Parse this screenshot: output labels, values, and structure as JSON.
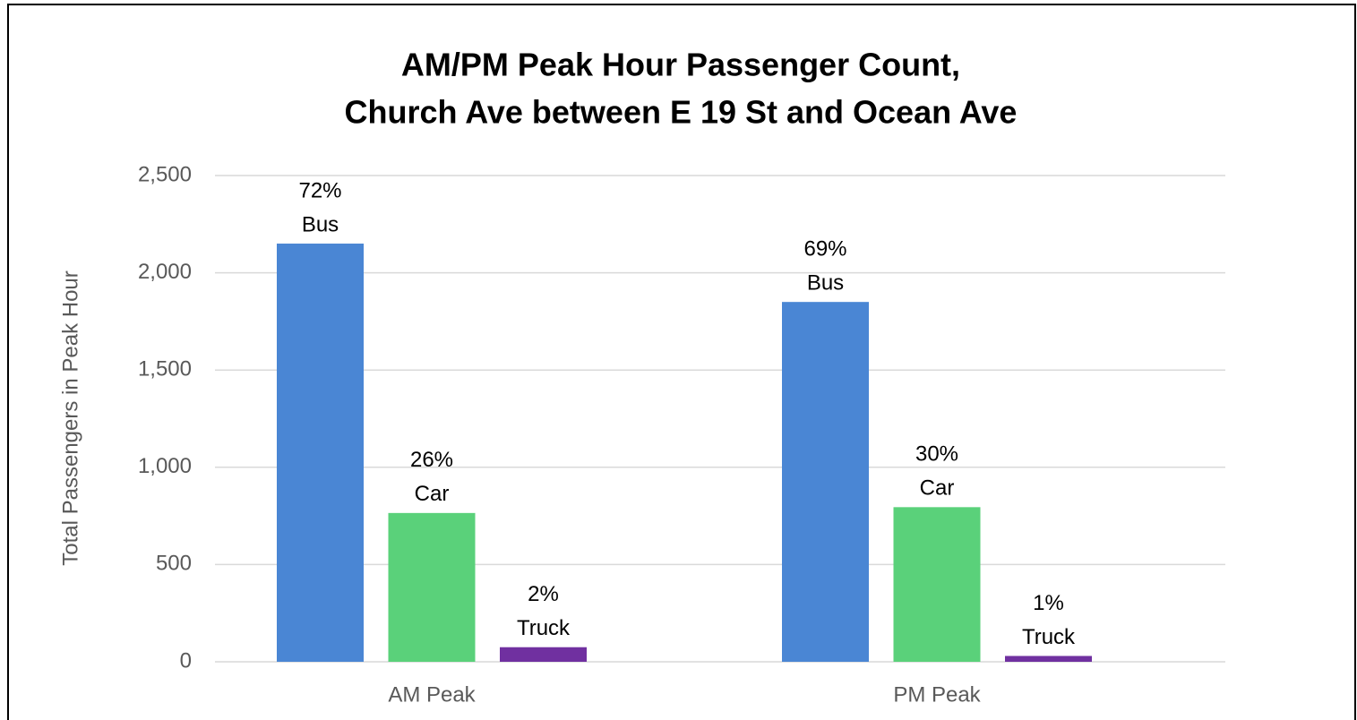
{
  "chart_data": {
    "type": "bar",
    "title": [
      "AM/PM Peak Hour Passenger Count,",
      "Church Ave between E 19 St and Ocean Ave"
    ],
    "y_label": "Total Passengers in Peak Hour",
    "categories": [
      "AM Peak",
      "PM Peak"
    ],
    "series": [
      {
        "name": "Bus",
        "color": "#4a86d4",
        "values": [
          2150,
          1850
        ],
        "share_labels": [
          "72%",
          "69%"
        ]
      },
      {
        "name": "Car",
        "color": "#5ad17a",
        "values": [
          765,
          795
        ],
        "share_labels": [
          "26%",
          "30%"
        ]
      },
      {
        "name": "Truck",
        "color": "#7030a0",
        "values": [
          75,
          30
        ],
        "share_labels": [
          "2%",
          "1%"
        ]
      }
    ],
    "ylim": [
      0,
      2500
    ],
    "yticks": [
      0,
      500,
      {
        "value": 1000,
        "label": "1,000"
      },
      {
        "value": 1500,
        "label": "1,500"
      },
      {
        "value": 2000,
        "label": "2,000"
      },
      {
        "value": 2500,
        "label": "2,500"
      }
    ],
    "grid": true
  }
}
